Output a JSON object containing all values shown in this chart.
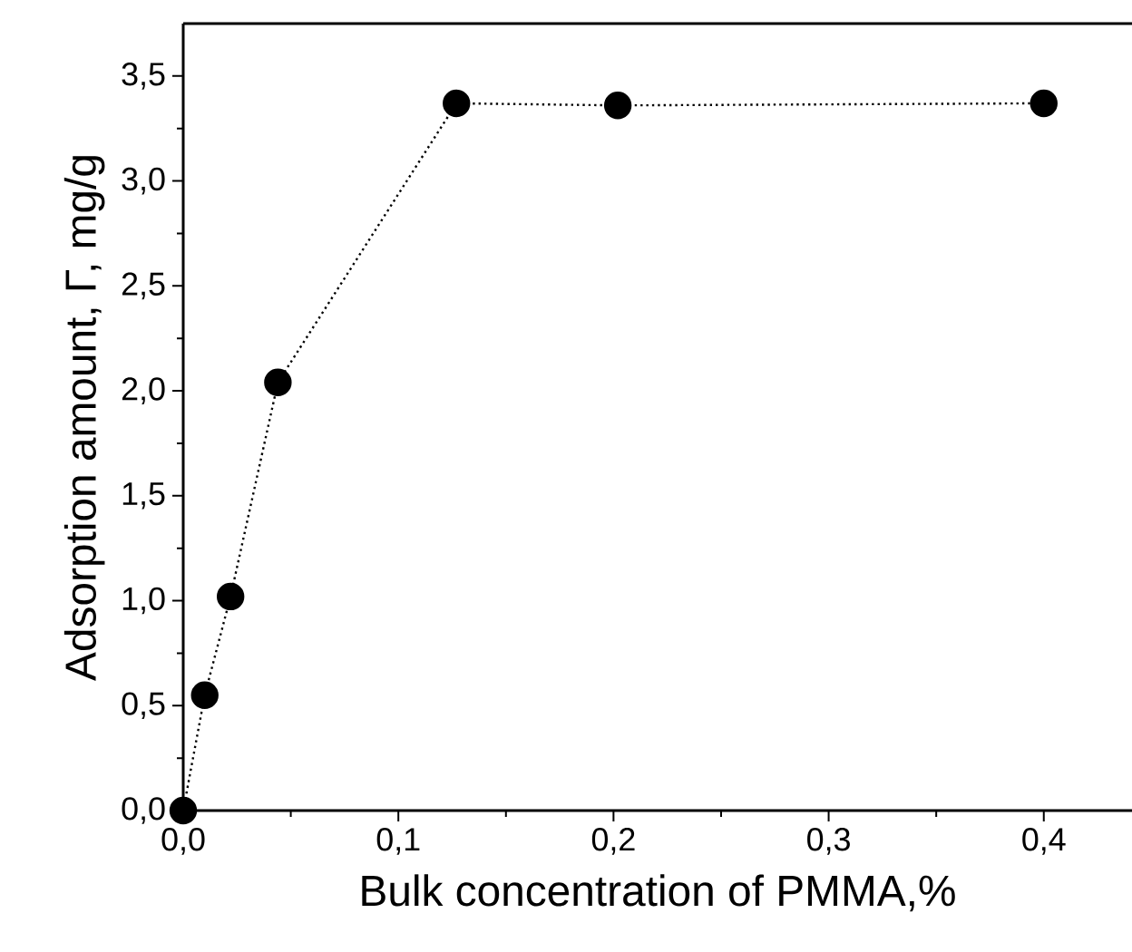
{
  "chart_data": {
    "type": "line",
    "xlabel": "Bulk concentration of PMMA,%",
    "ylabel": "Adsorption amount, Γ, mg/g",
    "x": [
      0,
      0.01,
      0.022,
      0.044,
      0.127,
      0.202,
      0.4
    ],
    "series": [
      {
        "color": "#000000",
        "values": [
          0,
          0.55,
          1.02,
          2.04,
          3.37,
          3.36,
          3.37
        ]
      }
    ],
    "xlim": [
      0,
      0.441
    ],
    "ylim": [
      0,
      3.75
    ],
    "xticks": [
      {
        "value": 0,
        "label": "0,0"
      },
      {
        "value": 0.1,
        "label": "0,1"
      },
      {
        "value": 0.2,
        "label": "0,2"
      },
      {
        "value": 0.3,
        "label": "0,3"
      },
      {
        "value": 0.4,
        "label": "0,4"
      }
    ],
    "yticks": [
      {
        "value": 0,
        "label": "0,0"
      },
      {
        "value": 0.5,
        "label": "0,5"
      },
      {
        "value": 1.0,
        "label": "1,0"
      },
      {
        "value": 1.5,
        "label": "1,5"
      },
      {
        "value": 2.0,
        "label": "2,0"
      },
      {
        "value": 2.5,
        "label": "2,5"
      },
      {
        "value": 3.0,
        "label": "3,0"
      },
      {
        "value": 3.5,
        "label": "3,5"
      }
    ],
    "marker": "circle",
    "line_style": "dotted"
  }
}
